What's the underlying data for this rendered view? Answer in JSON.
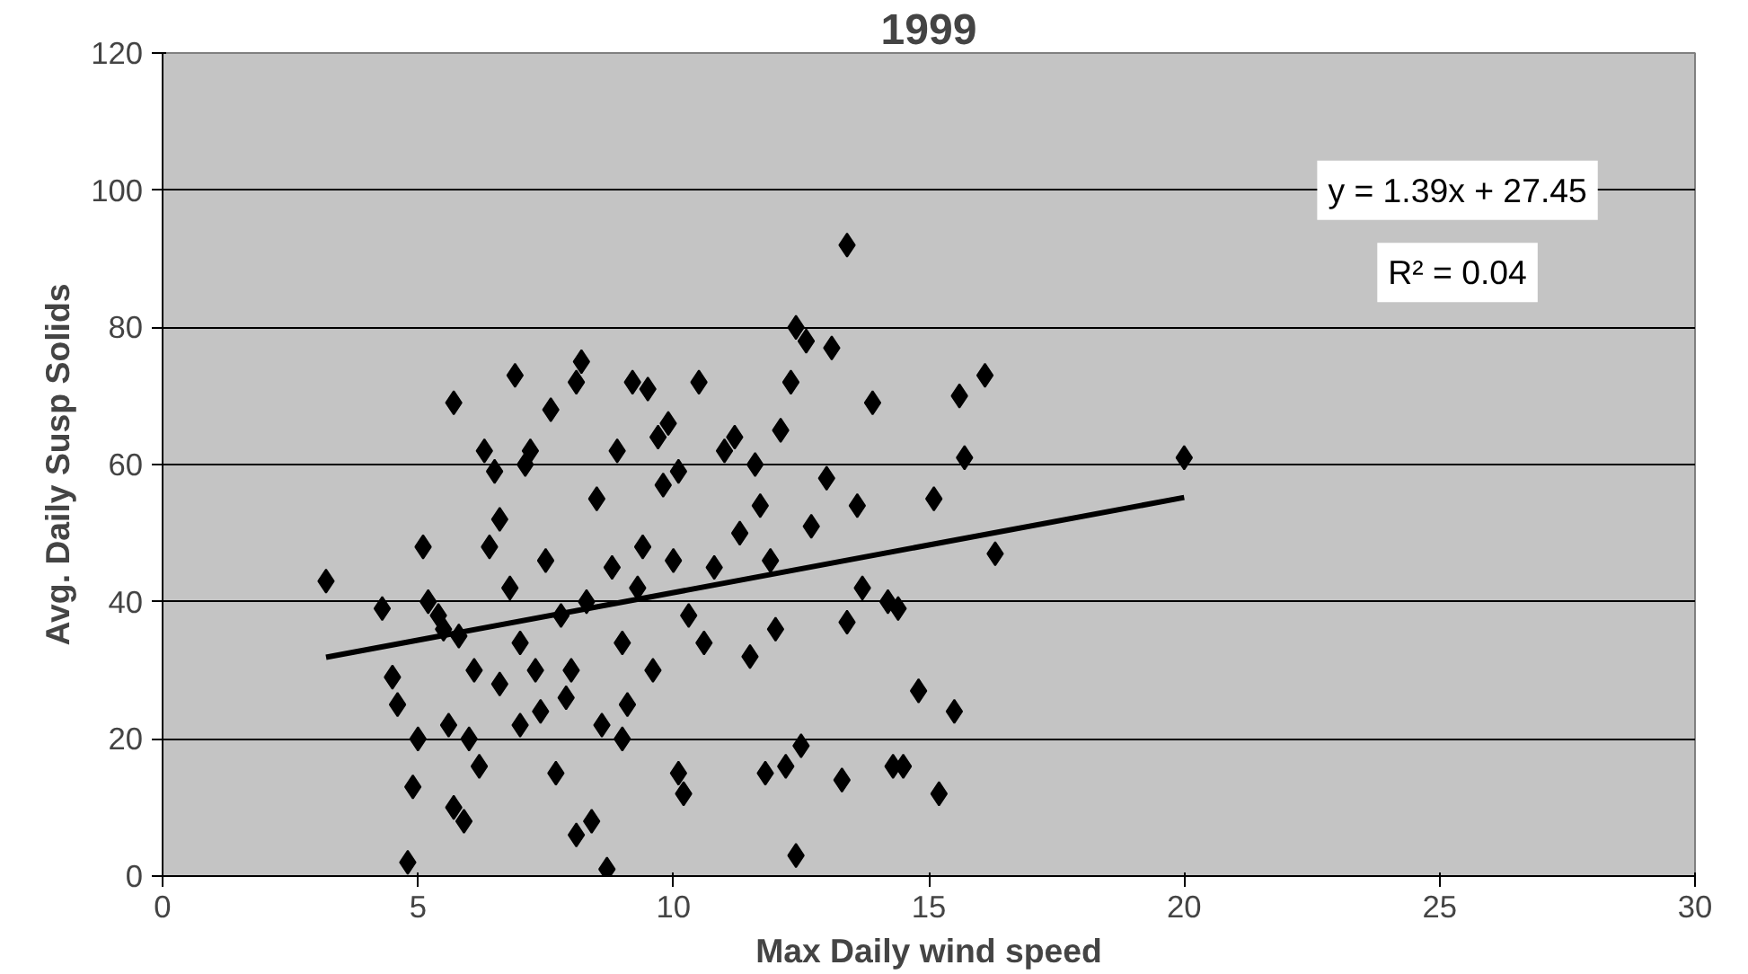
{
  "chart_data": {
    "type": "scatter",
    "title": "1999",
    "xlabel": "Max Daily wind speed",
    "ylabel": "Avg. Daily Susp Solids",
    "xlim": [
      0,
      30
    ],
    "ylim": [
      0,
      120
    ],
    "xticks": [
      0,
      5,
      10,
      15,
      20,
      25,
      30
    ],
    "yticks": [
      0,
      20,
      40,
      60,
      80,
      100,
      120
    ],
    "grid": "y",
    "marker": "diamond",
    "annotations": [
      "y = 1.39x + 27.45",
      "R² = 0.04"
    ],
    "series": [
      {
        "color": "#000000",
        "x": [
          3.2,
          4.3,
          4.5,
          4.6,
          4.8,
          4.9,
          5.0,
          5.1,
          5.2,
          5.4,
          5.5,
          5.6,
          5.7,
          5.7,
          5.8,
          5.9,
          6.0,
          6.1,
          6.2,
          6.3,
          6.4,
          6.5,
          6.6,
          6.6,
          6.8,
          6.9,
          7.0,
          7.0,
          7.1,
          7.2,
          7.3,
          7.4,
          7.5,
          7.6,
          7.7,
          7.8,
          7.9,
          8.0,
          8.1,
          8.1,
          8.2,
          8.3,
          8.4,
          8.5,
          8.6,
          8.7,
          8.8,
          8.9,
          9.0,
          9.0,
          9.1,
          9.2,
          9.3,
          9.4,
          9.5,
          9.6,
          9.7,
          9.8,
          9.9,
          10.0,
          10.1,
          10.1,
          10.2,
          10.3,
          10.5,
          10.6,
          10.8,
          11.0,
          11.2,
          11.3,
          11.5,
          11.6,
          11.7,
          11.8,
          11.9,
          12.0,
          12.1,
          12.2,
          12.3,
          12.4,
          12.4,
          12.5,
          12.6,
          12.7,
          13.0,
          13.1,
          13.3,
          13.4,
          13.4,
          13.6,
          13.7,
          13.9,
          14.2,
          14.3,
          14.4,
          14.5,
          14.8,
          15.1,
          15.2,
          15.5,
          15.6,
          15.7,
          16.1,
          16.3,
          20.0
        ],
        "values": [
          43,
          39,
          29,
          25,
          2,
          13,
          20,
          48,
          40,
          38,
          36,
          22,
          10,
          69,
          35,
          8,
          20,
          30,
          16,
          62,
          48,
          59,
          28,
          52,
          42,
          73,
          22,
          34,
          60,
          62,
          30,
          24,
          46,
          68,
          15,
          38,
          26,
          30,
          6,
          72,
          75,
          40,
          8,
          55,
          22,
          1,
          45,
          62,
          34,
          20,
          25,
          72,
          42,
          48,
          71,
          30,
          64,
          57,
          66,
          46,
          15,
          59,
          12,
          38,
          72,
          34,
          45,
          62,
          64,
          50,
          32,
          60,
          54,
          15,
          46,
          36,
          65,
          16,
          72,
          80,
          3,
          19,
          78,
          51,
          58,
          77,
          14,
          37,
          92,
          54,
          42,
          69,
          40,
          16,
          39,
          16,
          27,
          55,
          12,
          24,
          70,
          61,
          73,
          47,
          61
        ]
      },
      {
        "type": "line",
        "marker": "none",
        "color": "#000000",
        "x": [
          3.2,
          20.0
        ],
        "values": [
          31.9,
          55.2
        ]
      }
    ]
  }
}
